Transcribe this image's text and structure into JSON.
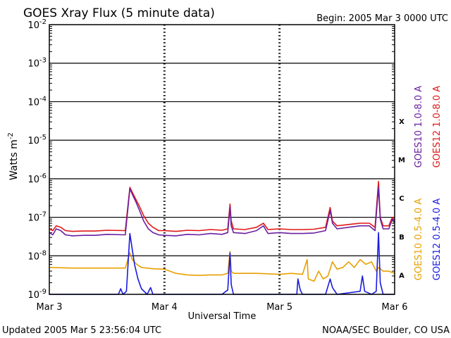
{
  "chart_data": {
    "type": "line",
    "title": "GOES Xray Flux (5 minute data)",
    "begin_label": "Begin:  2005 Mar 3 0000 UTC",
    "ylabel_base": "Watts m",
    "ylabel_exp": "-2",
    "xlabel": "Universal Time",
    "updated": "Updated 2005 Mar  5 23:56:04 UTC",
    "credit": "NOAA/SEC Boulder, CO USA",
    "y_scale": "log",
    "ylim": [
      1e-09,
      0.01
    ],
    "xlim": [
      0,
      3
    ],
    "y_ticks": [
      {
        "exp": -2,
        "base": "10",
        "sup": "-2"
      },
      {
        "exp": -3,
        "base": "10",
        "sup": "-3"
      },
      {
        "exp": -4,
        "base": "10",
        "sup": "-4"
      },
      {
        "exp": -5,
        "base": "10",
        "sup": "-5"
      },
      {
        "exp": -6,
        "base": "10",
        "sup": "-6"
      },
      {
        "exp": -7,
        "base": "10",
        "sup": "-7"
      },
      {
        "exp": -8,
        "base": "10",
        "sup": "-8"
      },
      {
        "exp": -9,
        "base": "10",
        "sup": "-9"
      }
    ],
    "x_ticks": [
      {
        "x": 0,
        "label": "Mar 3"
      },
      {
        "x": 1,
        "label": "Mar 4"
      },
      {
        "x": 2,
        "label": "Mar 5"
      },
      {
        "x": 3,
        "label": "Mar 6"
      }
    ],
    "flare_classes": [
      {
        "label": "X",
        "exp": -4
      },
      {
        "label": "M",
        "exp": -5
      },
      {
        "label": "C",
        "exp": -6
      },
      {
        "label": "B",
        "exp": -7
      },
      {
        "label": "A",
        "exp": -8
      }
    ],
    "legend_right": [
      {
        "label": "GOES10 1.0-8.0 A",
        "color": "#6a1fa0"
      },
      {
        "label": "GOES12 1.0-8.0 A",
        "color": "#e01818"
      },
      {
        "label": "GOES10 0.5-4.0 A",
        "color": "#e8a000"
      },
      {
        "label": "GOES12 0.5-4.0 A",
        "color": "#1a1ae0"
      }
    ],
    "series": [
      {
        "name": "GOES12 1.0-8.0 A",
        "color": "#e01818",
        "points": [
          [
            0,
            5e-08
          ],
          [
            0.03,
            4.5e-08
          ],
          [
            0.06,
            6e-08
          ],
          [
            0.1,
            5.5e-08
          ],
          [
            0.14,
            4.5e-08
          ],
          [
            0.2,
            4.3e-08
          ],
          [
            0.3,
            4.4e-08
          ],
          [
            0.4,
            4.4e-08
          ],
          [
            0.5,
            4.6e-08
          ],
          [
            0.66,
            4.5e-08
          ],
          [
            0.7,
            6e-07
          ],
          [
            0.72,
            4.5e-07
          ],
          [
            0.75,
            3e-07
          ],
          [
            0.78,
            2e-07
          ],
          [
            0.82,
            1.1e-07
          ],
          [
            0.86,
            7e-08
          ],
          [
            0.9,
            5.5e-08
          ],
          [
            0.95,
            4.5e-08
          ],
          [
            1.0,
            4.5e-08
          ],
          [
            1.1,
            4.3e-08
          ],
          [
            1.2,
            4.6e-08
          ],
          [
            1.3,
            4.5e-08
          ],
          [
            1.4,
            4.8e-08
          ],
          [
            1.5,
            4.6e-08
          ],
          [
            1.55,
            5e-08
          ],
          [
            1.57,
            2.2e-07
          ],
          [
            1.58,
            8e-08
          ],
          [
            1.6,
            5e-08
          ],
          [
            1.7,
            4.8e-08
          ],
          [
            1.8,
            5.5e-08
          ],
          [
            1.86,
            7e-08
          ],
          [
            1.9,
            4.8e-08
          ],
          [
            2.0,
            5e-08
          ],
          [
            2.1,
            4.8e-08
          ],
          [
            2.2,
            4.8e-08
          ],
          [
            2.3,
            4.9e-08
          ],
          [
            2.4,
            5.5e-08
          ],
          [
            2.44,
            1.8e-07
          ],
          [
            2.46,
            8e-08
          ],
          [
            2.5,
            6e-08
          ],
          [
            2.6,
            6.5e-08
          ],
          [
            2.7,
            7e-08
          ],
          [
            2.78,
            7e-08
          ],
          [
            2.83,
            5.5e-08
          ],
          [
            2.86,
            8.5e-07
          ],
          [
            2.875,
            1e-07
          ],
          [
            2.9,
            6e-08
          ],
          [
            2.95,
            6e-08
          ],
          [
            2.98,
            1e-07
          ],
          [
            3.0,
            8e-08
          ]
        ]
      },
      {
        "name": "GOES10 1.0-8.0 A",
        "color": "#6a1fa0",
        "points": [
          [
            0,
            4e-08
          ],
          [
            0.03,
            3.5e-08
          ],
          [
            0.06,
            5e-08
          ],
          [
            0.1,
            4.5e-08
          ],
          [
            0.14,
            3.5e-08
          ],
          [
            0.2,
            3.3e-08
          ],
          [
            0.3,
            3.4e-08
          ],
          [
            0.4,
            3.4e-08
          ],
          [
            0.5,
            3.6e-08
          ],
          [
            0.66,
            3.5e-08
          ],
          [
            0.7,
            5.5e-07
          ],
          [
            0.72,
            4e-07
          ],
          [
            0.75,
            2.6e-07
          ],
          [
            0.78,
            1.6e-07
          ],
          [
            0.82,
            8e-08
          ],
          [
            0.86,
            5e-08
          ],
          [
            0.9,
            4e-08
          ],
          [
            0.95,
            3.5e-08
          ],
          [
            1.0,
            3.4e-08
          ],
          [
            1.1,
            3.3e-08
          ],
          [
            1.2,
            3.6e-08
          ],
          [
            1.3,
            3.5e-08
          ],
          [
            1.4,
            3.8e-08
          ],
          [
            1.5,
            3.6e-08
          ],
          [
            1.55,
            4e-08
          ],
          [
            1.57,
            1.8e-07
          ],
          [
            1.58,
            6e-08
          ],
          [
            1.6,
            4e-08
          ],
          [
            1.7,
            3.8e-08
          ],
          [
            1.8,
            4.5e-08
          ],
          [
            1.86,
            6e-08
          ],
          [
            1.9,
            3.8e-08
          ],
          [
            2.0,
            4e-08
          ],
          [
            2.1,
            3.8e-08
          ],
          [
            2.2,
            3.8e-08
          ],
          [
            2.3,
            3.9e-08
          ],
          [
            2.4,
            4.5e-08
          ],
          [
            2.44,
            1.5e-07
          ],
          [
            2.46,
            7e-08
          ],
          [
            2.5,
            5e-08
          ],
          [
            2.6,
            5.5e-08
          ],
          [
            2.7,
            6e-08
          ],
          [
            2.78,
            6e-08
          ],
          [
            2.83,
            4.5e-08
          ],
          [
            2.86,
            6e-07
          ],
          [
            2.875,
            9e-08
          ],
          [
            2.9,
            5e-08
          ],
          [
            2.95,
            5e-08
          ],
          [
            2.98,
            9e-08
          ],
          [
            3.0,
            7e-08
          ]
        ]
      },
      {
        "name": "GOES10 0.5-4.0 A",
        "color": "#e8a000",
        "points": [
          [
            0,
            5e-09
          ],
          [
            0.2,
            4.8e-09
          ],
          [
            0.4,
            4.8e-09
          ],
          [
            0.6,
            4.8e-09
          ],
          [
            0.66,
            4.8e-09
          ],
          [
            0.7,
            1.2e-08
          ],
          [
            0.72,
            8e-09
          ],
          [
            0.76,
            6e-09
          ],
          [
            0.8,
            5e-09
          ],
          [
            0.9,
            4.6e-09
          ],
          [
            1.0,
            4.5e-09
          ],
          [
            1.1,
            3.5e-09
          ],
          [
            1.2,
            3.2e-09
          ],
          [
            1.3,
            3.1e-09
          ],
          [
            1.4,
            3.2e-09
          ],
          [
            1.5,
            3.2e-09
          ],
          [
            1.55,
            3.5e-09
          ],
          [
            1.57,
            1.3e-08
          ],
          [
            1.58,
            4e-09
          ],
          [
            1.6,
            3.5e-09
          ],
          [
            1.8,
            3.5e-09
          ],
          [
            2.0,
            3.3e-09
          ],
          [
            2.1,
            3.5e-09
          ],
          [
            2.2,
            3.3e-09
          ],
          [
            2.24,
            8e-09
          ],
          [
            2.25,
            2.5e-09
          ],
          [
            2.3,
            2.2e-09
          ],
          [
            2.34,
            4e-09
          ],
          [
            2.38,
            2.5e-09
          ],
          [
            2.42,
            3e-09
          ],
          [
            2.46,
            7e-09
          ],
          [
            2.5,
            4.5e-09
          ],
          [
            2.55,
            5e-09
          ],
          [
            2.6,
            7e-09
          ],
          [
            2.65,
            5e-09
          ],
          [
            2.7,
            8e-09
          ],
          [
            2.75,
            6e-09
          ],
          [
            2.8,
            7e-09
          ],
          [
            2.84,
            4e-09
          ],
          [
            2.86,
            5e-09
          ],
          [
            2.9,
            4e-09
          ],
          [
            2.95,
            4e-09
          ],
          [
            3.0,
            3.5e-09
          ]
        ]
      },
      {
        "name": "GOES12 0.5-4.0 A",
        "color": "#1a1ae0",
        "points": [
          [
            0,
            1e-09
          ],
          [
            0.6,
            1e-09
          ],
          [
            0.62,
            1.4e-09
          ],
          [
            0.64,
            1e-09
          ],
          [
            0.67,
            1.2e-09
          ],
          [
            0.7,
            3.8e-08
          ],
          [
            0.72,
            1.5e-08
          ],
          [
            0.74,
            6e-09
          ],
          [
            0.77,
            2.5e-09
          ],
          [
            0.8,
            1.4e-09
          ],
          [
            0.85,
            1e-09
          ],
          [
            0.88,
            1.5e-09
          ],
          [
            0.9,
            1e-09
          ],
          [
            1.0,
            1e-09
          ],
          [
            1.5,
            1e-09
          ],
          [
            1.55,
            1.3e-09
          ],
          [
            1.57,
            1.2e-08
          ],
          [
            1.58,
            1.8e-09
          ],
          [
            1.6,
            1e-09
          ],
          [
            2.0,
            1e-09
          ],
          [
            2.15,
            1e-09
          ],
          [
            2.16,
            2.5e-09
          ],
          [
            2.18,
            1.3e-09
          ],
          [
            2.2,
            1e-09
          ],
          [
            2.4,
            1e-09
          ],
          [
            2.44,
            2.5e-09
          ],
          [
            2.46,
            1.5e-09
          ],
          [
            2.5,
            1e-09
          ],
          [
            2.7,
            1.2e-09
          ],
          [
            2.72,
            3e-09
          ],
          [
            2.74,
            1.2e-09
          ],
          [
            2.8,
            1e-09
          ],
          [
            2.84,
            1.2e-09
          ],
          [
            2.86,
            4e-08
          ],
          [
            2.875,
            2e-09
          ],
          [
            2.9,
            1e-09
          ],
          [
            3.0,
            1e-09
          ]
        ]
      }
    ]
  }
}
